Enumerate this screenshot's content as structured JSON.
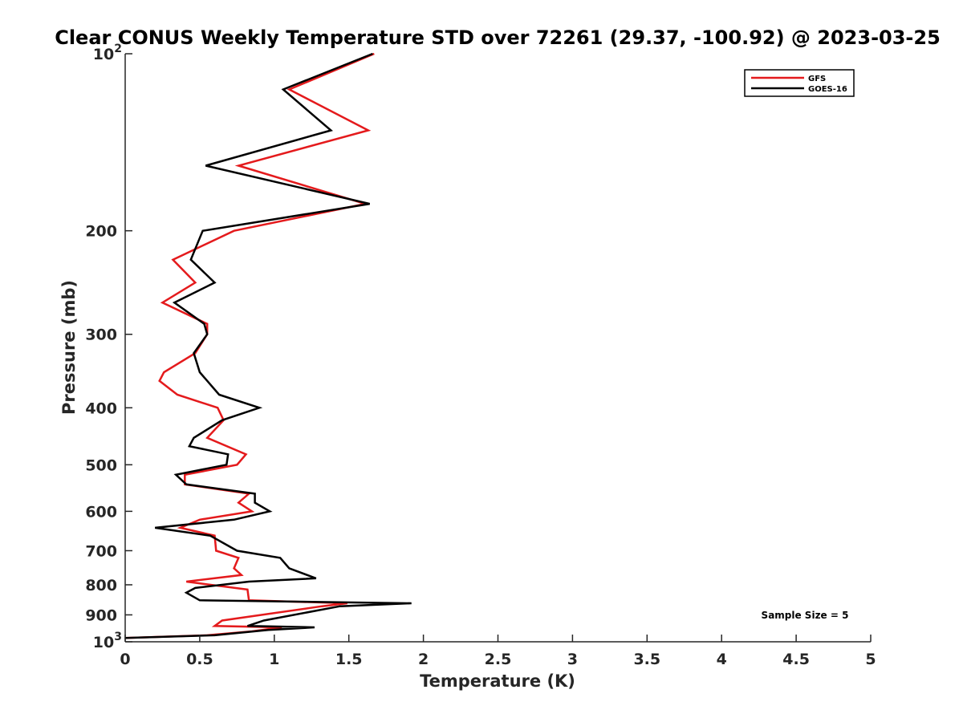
{
  "chart_data": {
    "type": "line",
    "title": "Clear CONUS Weekly Temperature STD over 72261 (29.37, -100.92) @ 2023-03-25",
    "xlabel": "Temperature (K)",
    "ylabel": "Pressure (mb)",
    "xlim": [
      0,
      5
    ],
    "ylim": [
      100,
      1000
    ],
    "y_scale": "log",
    "y_reversed": true,
    "grid": false,
    "x_ticks": [
      0,
      0.5,
      1,
      1.5,
      2,
      2.5,
      3,
      3.5,
      4,
      4.5,
      5
    ],
    "x_tick_labels": [
      "0",
      "0.5",
      "1",
      "1.5",
      "2",
      "2.5",
      "3",
      "3.5",
      "4",
      "4.5",
      "5"
    ],
    "y_ticks": [
      {
        "value": 100,
        "label": "10",
        "exp": "2"
      },
      {
        "value": 200,
        "label": "200",
        "exp": ""
      },
      {
        "value": 300,
        "label": "300",
        "exp": ""
      },
      {
        "value": 400,
        "label": "400",
        "exp": ""
      },
      {
        "value": 500,
        "label": "500",
        "exp": ""
      },
      {
        "value": 600,
        "label": "600",
        "exp": ""
      },
      {
        "value": 700,
        "label": "700",
        "exp": ""
      },
      {
        "value": 800,
        "label": "800",
        "exp": ""
      },
      {
        "value": 900,
        "label": "900",
        "exp": ""
      },
      {
        "value": 1000,
        "label": "10",
        "exp": "3"
      }
    ],
    "legend_position": "top-right",
    "annotation": "Sample Size = 5",
    "series": [
      {
        "name": "GFS",
        "color": "#e41a1c",
        "points": [
          [
            1.67,
            100
          ],
          [
            1.1,
            115
          ],
          [
            1.63,
            135
          ],
          [
            0.76,
            155
          ],
          [
            1.61,
            180
          ],
          [
            0.73,
            200
          ],
          [
            0.32,
            224
          ],
          [
            0.47,
            245
          ],
          [
            0.25,
            265
          ],
          [
            0.55,
            288
          ],
          [
            0.55,
            300
          ],
          [
            0.47,
            323
          ],
          [
            0.26,
            348
          ],
          [
            0.23,
            360
          ],
          [
            0.35,
            380
          ],
          [
            0.62,
            400
          ],
          [
            0.66,
            420
          ],
          [
            0.55,
            450
          ],
          [
            0.81,
            480
          ],
          [
            0.75,
            500
          ],
          [
            0.4,
            520
          ],
          [
            0.4,
            540
          ],
          [
            0.83,
            560
          ],
          [
            0.76,
            580
          ],
          [
            0.85,
            600
          ],
          [
            0.5,
            620
          ],
          [
            0.37,
            640
          ],
          [
            0.6,
            660
          ],
          [
            0.61,
            700
          ],
          [
            0.76,
            720
          ],
          [
            0.73,
            750
          ],
          [
            0.78,
            770
          ],
          [
            0.41,
            790
          ],
          [
            0.82,
            815
          ],
          [
            0.83,
            850
          ],
          [
            1.49,
            860
          ],
          [
            1.32,
            870
          ],
          [
            0.65,
            920
          ],
          [
            0.6,
            940
          ],
          [
            1.05,
            945
          ],
          [
            0.85,
            960
          ],
          [
            0.55,
            975
          ],
          [
            0,
            985
          ]
        ]
      },
      {
        "name": "GOES-16",
        "color": "#000000",
        "points": [
          [
            1.66,
            100
          ],
          [
            1.06,
            115
          ],
          [
            1.38,
            135
          ],
          [
            0.54,
            155
          ],
          [
            1.64,
            180
          ],
          [
            0.52,
            200
          ],
          [
            0.44,
            224
          ],
          [
            0.6,
            245
          ],
          [
            0.33,
            265
          ],
          [
            0.53,
            288
          ],
          [
            0.55,
            300
          ],
          [
            0.46,
            323
          ],
          [
            0.5,
            348
          ],
          [
            0.63,
            380
          ],
          [
            0.9,
            400
          ],
          [
            0.65,
            420
          ],
          [
            0.46,
            450
          ],
          [
            0.43,
            465
          ],
          [
            0.69,
            480
          ],
          [
            0.68,
            500
          ],
          [
            0.34,
            520
          ],
          [
            0.41,
            540
          ],
          [
            0.87,
            560
          ],
          [
            0.87,
            580
          ],
          [
            0.97,
            600
          ],
          [
            0.73,
            620
          ],
          [
            0.2,
            640
          ],
          [
            0.57,
            660
          ],
          [
            0.75,
            700
          ],
          [
            1.04,
            720
          ],
          [
            1.1,
            750
          ],
          [
            1.28,
            780
          ],
          [
            0.83,
            790
          ],
          [
            0.47,
            810
          ],
          [
            0.41,
            825
          ],
          [
            0.5,
            850
          ],
          [
            1.92,
            860
          ],
          [
            1.44,
            870
          ],
          [
            0.93,
            920
          ],
          [
            0.82,
            940
          ],
          [
            1.27,
            945
          ],
          [
            0.96,
            955
          ],
          [
            0.6,
            975
          ],
          [
            0,
            985
          ]
        ]
      }
    ]
  }
}
